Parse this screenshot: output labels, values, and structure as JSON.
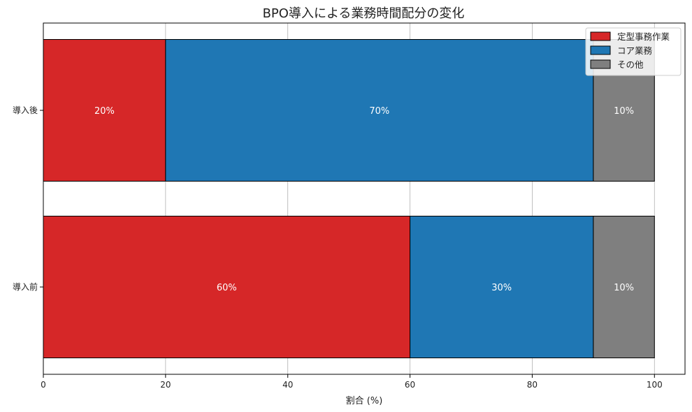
{
  "chart_data": {
    "type": "bar",
    "orientation": "horizontal",
    "stacked": true,
    "title": "BPO導入による業務時間配分の変化",
    "xlabel": "割合 (%)",
    "ylabel": "",
    "xlim": [
      0,
      105
    ],
    "xticks": [
      0,
      20,
      40,
      60,
      80,
      100
    ],
    "grid": "vertical",
    "legend_position": "top-right",
    "categories": [
      "導入前",
      "導入後"
    ],
    "series": [
      {
        "name": "定型事務作業",
        "color": "#d62728",
        "values": [
          60,
          20
        ],
        "labels": [
          "60%",
          "20%"
        ]
      },
      {
        "name": "コア業務",
        "color": "#1f77b4",
        "values": [
          30,
          70
        ],
        "labels": [
          "30%",
          "70%"
        ]
      },
      {
        "name": "その他",
        "color": "#7f7f7f",
        "values": [
          10,
          10
        ],
        "labels": [
          "10%",
          "10%"
        ]
      }
    ]
  }
}
